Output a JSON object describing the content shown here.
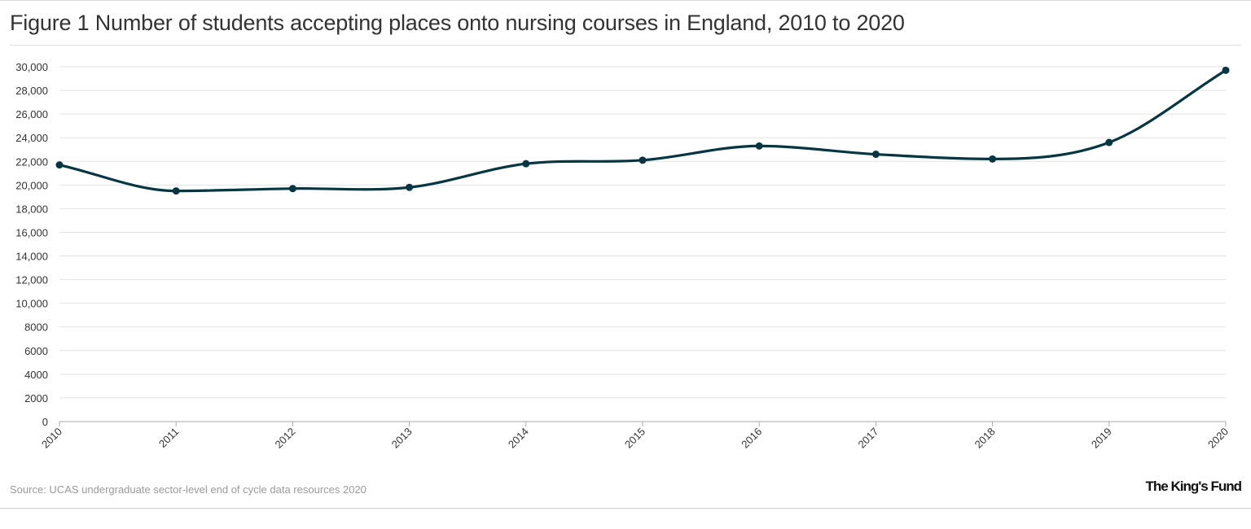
{
  "figure": {
    "title": "Figure 1 Number of students accepting places onto nursing courses in England, 2010 to 2020",
    "source": "Source: UCAS undergraduate sector-level end of cycle data resources 2020",
    "brand": "The King's Fund",
    "line_color": "#063642"
  },
  "chart_data": {
    "type": "line",
    "title": "Figure 1 Number of students accepting places onto nursing courses in England, 2010 to 2020",
    "xlabel": "",
    "ylabel": "",
    "x": [
      "2010",
      "2011",
      "2012",
      "2013",
      "2014",
      "2015",
      "2016",
      "2017",
      "2018",
      "2019",
      "2020"
    ],
    "series": [
      {
        "values": [
          21700,
          19500,
          19700,
          19800,
          21800,
          22100,
          23300,
          22600,
          22200,
          23600,
          29700
        ]
      }
    ],
    "ylim": [
      0,
      30000
    ],
    "yticks": [
      0,
      2000,
      4000,
      6000,
      8000,
      10000,
      12000,
      14000,
      16000,
      18000,
      20000,
      22000,
      24000,
      26000,
      28000,
      30000
    ],
    "ytick_labels": [
      "0",
      "2000",
      "4000",
      "6000",
      "8000",
      "10,000",
      "12,000",
      "14,000",
      "16,000",
      "18,000",
      "20,000",
      "22,000",
      "24,000",
      "26,000",
      "28,000",
      "30,000"
    ],
    "grid": true,
    "smooth": true,
    "legend": "none"
  }
}
